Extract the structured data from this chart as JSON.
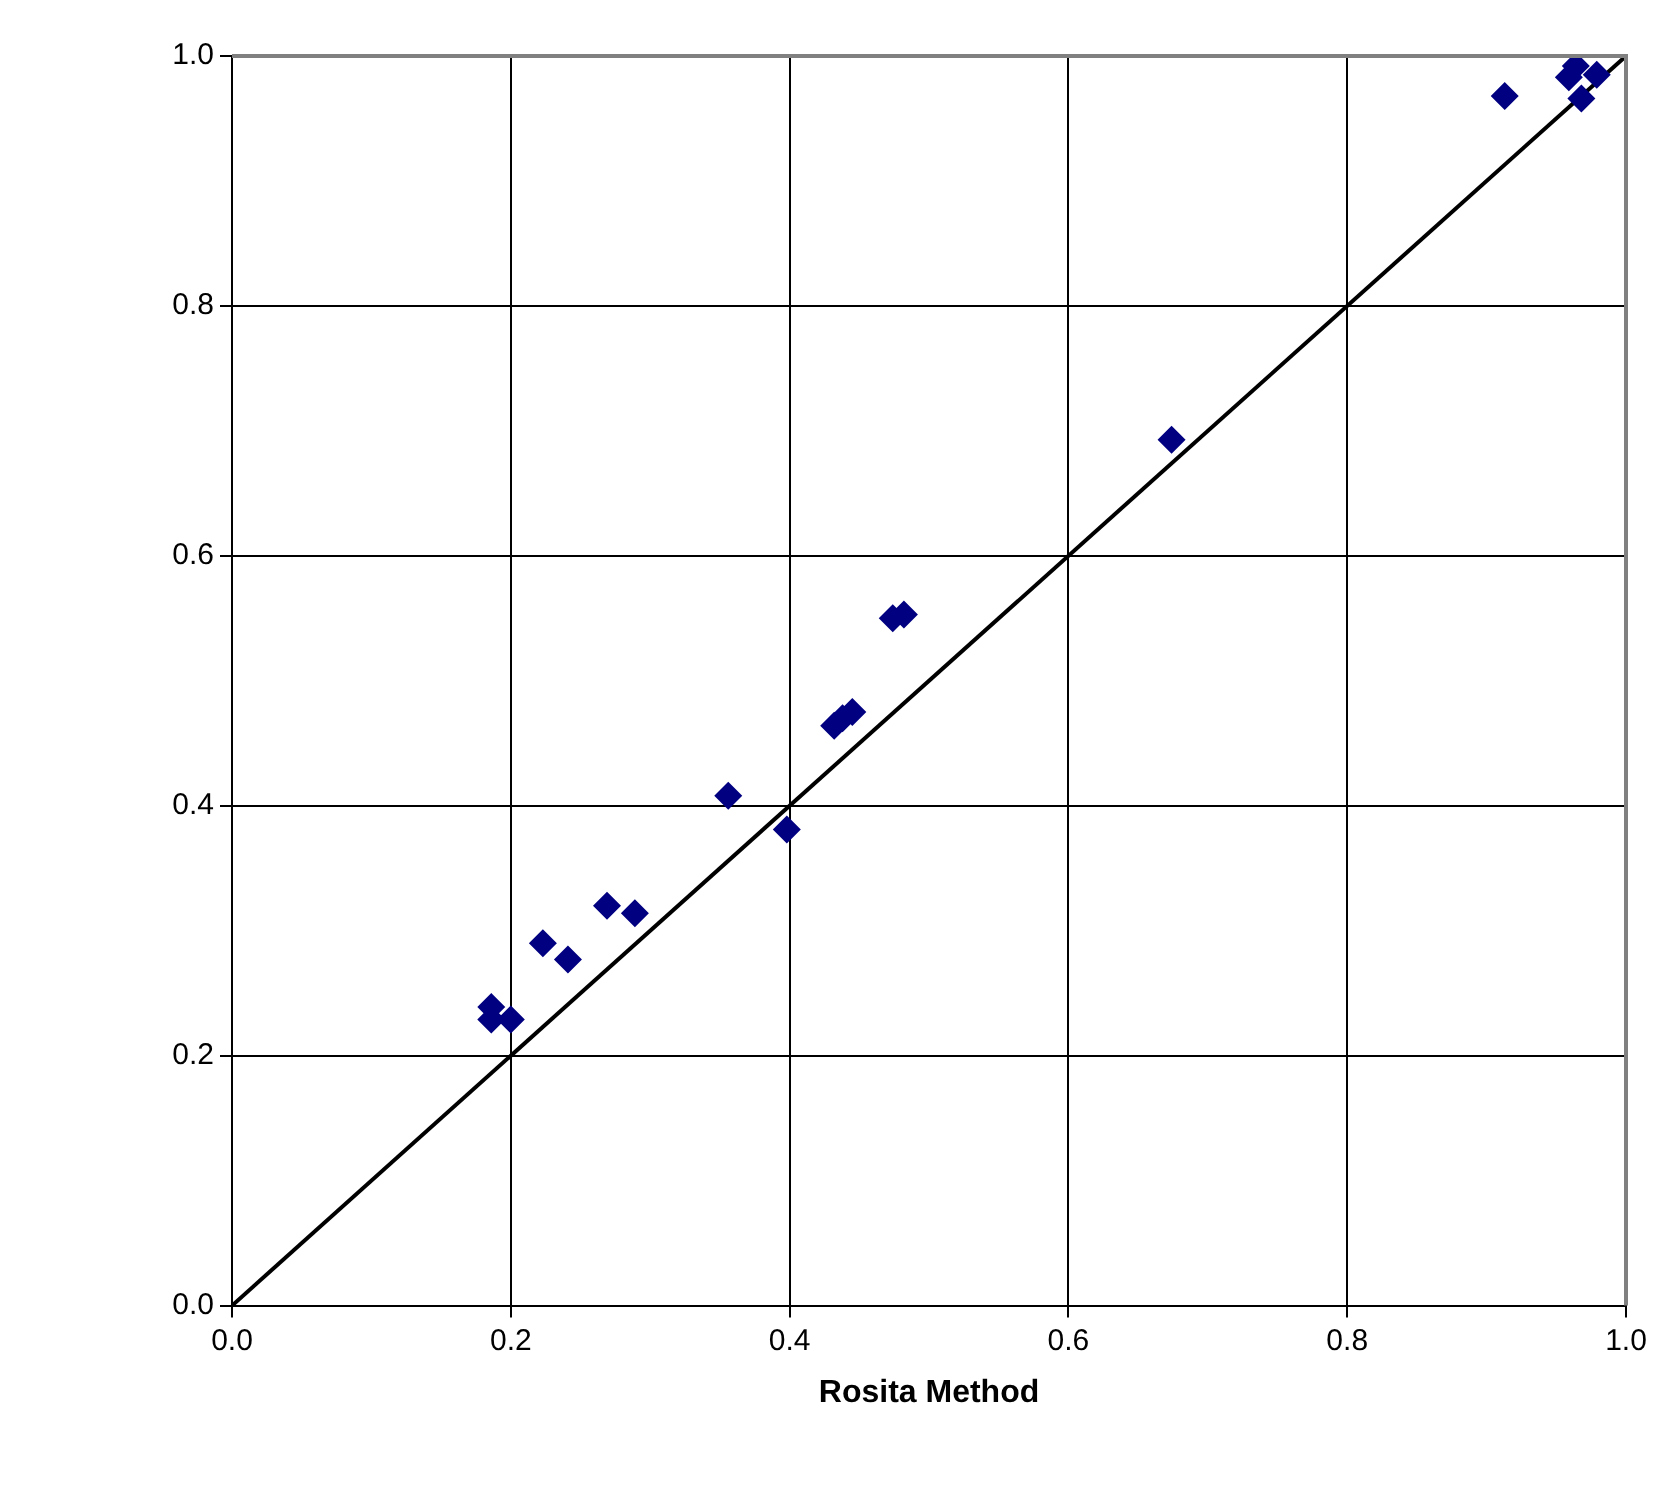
{
  "chart_data": {
    "type": "scatter",
    "xlabel": "Rosita Method",
    "xlim": [
      0,
      1
    ],
    "ylim": [
      0,
      1
    ],
    "xticks": [
      {
        "value": 0,
        "label": "0.0"
      },
      {
        "value": 0.2,
        "label": "0.2"
      },
      {
        "value": 0.4,
        "label": "0.4"
      },
      {
        "value": 0.6,
        "label": "0.6"
      },
      {
        "value": 0.8,
        "label": "0.8"
      },
      {
        "value": 1,
        "label": "1.0"
      }
    ],
    "yticks": [
      {
        "value": 0,
        "label": "0.0"
      },
      {
        "value": 0.2,
        "label": "0.2"
      },
      {
        "value": 0.4,
        "label": "0.4"
      },
      {
        "value": 0.6,
        "label": "0.6"
      },
      {
        "value": 0.8,
        "label": "0.8"
      },
      {
        "value": 1,
        "label": "1.0"
      }
    ],
    "grid": true,
    "legend": false,
    "marker": "diamond",
    "series": [
      {
        "type": "scatter",
        "color": "#000080",
        "x": [
          0.186,
          0.186,
          0.2,
          0.223,
          0.241,
          0.269,
          0.289,
          0.356,
          0.398,
          0.432,
          0.438,
          0.445,
          0.474,
          0.482,
          0.674,
          0.913,
          0.964,
          0.959,
          0.968,
          0.979
        ],
        "values": [
          0.239,
          0.229,
          0.229,
          0.29,
          0.277,
          0.32,
          0.314,
          0.408,
          0.381,
          0.464,
          0.47,
          0.475,
          0.55,
          0.553,
          0.693,
          0.968,
          0.992,
          0.983,
          0.966,
          0.985
        ]
      },
      {
        "type": "line",
        "color": "#000000",
        "marker": "none",
        "x": [
          0,
          1
        ],
        "values": [
          0,
          1
        ]
      }
    ]
  }
}
